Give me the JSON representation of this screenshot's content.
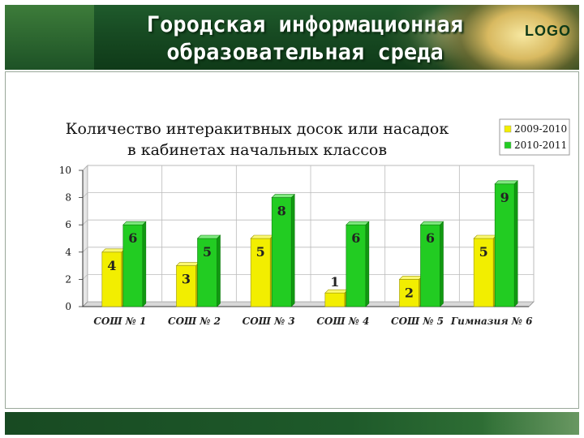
{
  "slide": {
    "title_line1": "Городская информационная",
    "title_line2": "образовательная среда",
    "logo": "LOGO"
  },
  "colors": {
    "header_green": "#1a4f25",
    "series_2009": "#f2ee00",
    "series_2010": "#22cc22"
  },
  "chart_data": {
    "type": "bar",
    "title_line1": "Количество интеракитвных досок или насадок",
    "title_line2": "в кабинетах начальных классов",
    "categories": [
      "СОШ № 1",
      "СОШ № 2",
      "СОШ № 3",
      "СОШ № 4",
      "СОШ № 5",
      "Гимназия № 6"
    ],
    "series": [
      {
        "name": "2009-2010",
        "values": [
          4,
          3,
          5,
          1,
          2,
          5
        ],
        "color": "#f2ee00"
      },
      {
        "name": "2010-2011",
        "values": [
          6,
          5,
          8,
          6,
          6,
          9
        ],
        "color": "#22cc22"
      }
    ],
    "yticks": [
      0,
      2,
      4,
      6,
      8,
      10
    ],
    "ylim": [
      0,
      10
    ],
    "grid": true,
    "legend_position": "top-right"
  }
}
